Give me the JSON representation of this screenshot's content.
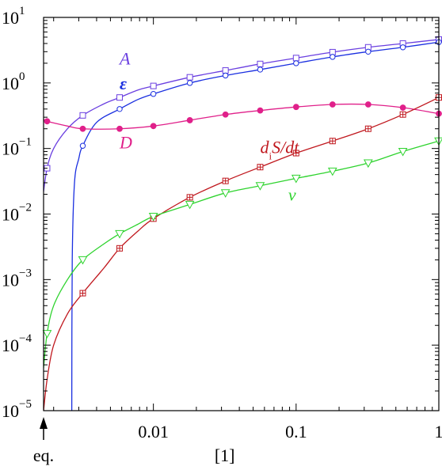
{
  "chart_data": {
    "type": "line",
    "title": "",
    "xlabel": "[1]",
    "ylabel": "",
    "x_scale": "log",
    "y_scale": "log",
    "xlim": [
      0.0017,
      1
    ],
    "ylim": [
      1e-05,
      10
    ],
    "grid": false,
    "x_ticks": [
      {
        "value": 0.01,
        "label": "0.01"
      },
      {
        "value": 0.1,
        "label": "0.1"
      },
      {
        "value": 1,
        "label": "1"
      }
    ],
    "y_ticks": [
      {
        "value": 1e-05,
        "base": "10",
        "exp": "−5"
      },
      {
        "value": 0.0001,
        "base": "10",
        "exp": "−4"
      },
      {
        "value": 0.001,
        "base": "10",
        "exp": "−3"
      },
      {
        "value": 0.01,
        "base": "10",
        "exp": "−2"
      },
      {
        "value": 0.1,
        "base": "10",
        "exp": "−1"
      },
      {
        "value": 1,
        "base": "10",
        "exp": "0"
      },
      {
        "value": 10,
        "base": "10",
        "exp": "1"
      }
    ],
    "eq_marker": {
      "label": "eq.",
      "x": 0.0017
    },
    "series": [
      {
        "name": "A",
        "color": "#6a3fe0",
        "marker": "square",
        "label_at": [
          0.0058,
          1.9
        ],
        "curve": [
          [
            0.0017,
            0.022
          ],
          [
            0.0018,
            0.05
          ],
          [
            0.002,
            0.1
          ],
          [
            0.0025,
            0.2
          ],
          [
            0.0032,
            0.32
          ],
          [
            0.0045,
            0.48
          ],
          [
            0.0058,
            0.6
          ],
          [
            0.0078,
            0.78
          ],
          [
            0.01,
            0.9
          ],
          [
            0.018,
            1.22
          ],
          [
            0.032,
            1.55
          ],
          [
            0.056,
            1.95
          ],
          [
            0.1,
            2.4
          ],
          [
            0.18,
            2.95
          ],
          [
            0.32,
            3.5
          ],
          [
            0.56,
            4.0
          ],
          [
            1,
            4.6
          ]
        ],
        "points": [
          [
            0.0018,
            0.05
          ],
          [
            0.0032,
            0.32
          ],
          [
            0.0058,
            0.6
          ],
          [
            0.01,
            0.9
          ],
          [
            0.018,
            1.22
          ],
          [
            0.032,
            1.55
          ],
          [
            0.056,
            1.95
          ],
          [
            0.1,
            2.4
          ],
          [
            0.18,
            2.95
          ],
          [
            0.32,
            3.5
          ],
          [
            0.56,
            4.0
          ],
          [
            1,
            4.6
          ]
        ]
      },
      {
        "name": "ε",
        "color": "#1a2fe0",
        "marker": "circle",
        "label_at": [
          0.0058,
          0.8
        ],
        "curve": [
          [
            0.00268,
            1e-05
          ],
          [
            0.0027,
            0.002
          ],
          [
            0.0028,
            0.03
          ],
          [
            0.003,
            0.07
          ],
          [
            0.0032,
            0.11
          ],
          [
            0.004,
            0.25
          ],
          [
            0.0058,
            0.4
          ],
          [
            0.0078,
            0.56
          ],
          [
            0.01,
            0.68
          ],
          [
            0.018,
            1.0
          ],
          [
            0.032,
            1.3
          ],
          [
            0.056,
            1.6
          ],
          [
            0.1,
            2.0
          ],
          [
            0.18,
            2.5
          ],
          [
            0.32,
            3.0
          ],
          [
            0.56,
            3.5
          ],
          [
            1,
            4.2
          ]
        ],
        "points": [
          [
            0.0032,
            0.11
          ],
          [
            0.0058,
            0.4
          ],
          [
            0.01,
            0.68
          ],
          [
            0.018,
            1.0
          ],
          [
            0.032,
            1.3
          ],
          [
            0.056,
            1.6
          ],
          [
            0.1,
            2.0
          ],
          [
            0.18,
            2.5
          ],
          [
            0.32,
            3.0
          ],
          [
            0.56,
            3.5
          ],
          [
            1,
            4.2
          ]
        ]
      },
      {
        "name": "D",
        "color": "#e0208a",
        "marker": "dot",
        "label_at": [
          0.0058,
          0.1
        ],
        "curve": [
          [
            0.0017,
            0.28
          ],
          [
            0.0018,
            0.26
          ],
          [
            0.0025,
            0.22
          ],
          [
            0.0032,
            0.2
          ],
          [
            0.0058,
            0.2
          ],
          [
            0.01,
            0.22
          ],
          [
            0.018,
            0.27
          ],
          [
            0.032,
            0.33
          ],
          [
            0.056,
            0.38
          ],
          [
            0.1,
            0.43
          ],
          [
            0.18,
            0.47
          ],
          [
            0.32,
            0.47
          ],
          [
            0.56,
            0.42
          ],
          [
            1,
            0.34
          ]
        ],
        "points": [
          [
            0.0018,
            0.26
          ],
          [
            0.0032,
            0.2
          ],
          [
            0.0058,
            0.2
          ],
          [
            0.01,
            0.22
          ],
          [
            0.018,
            0.27
          ],
          [
            0.032,
            0.33
          ],
          [
            0.056,
            0.38
          ],
          [
            0.1,
            0.43
          ],
          [
            0.18,
            0.47
          ],
          [
            0.32,
            0.47
          ],
          [
            0.56,
            0.42
          ],
          [
            1,
            0.34
          ]
        ]
      },
      {
        "name": "d_iS/dt",
        "label_main": "d",
        "label_sub": "i",
        "label_rest": "S/dt",
        "color": "#c0181e",
        "marker": "square-plus",
        "label_at": [
          0.056,
          0.085
        ],
        "curve": [
          [
            0.0017,
            1e-05
          ],
          [
            0.0018,
            3e-05
          ],
          [
            0.002,
            0.0001
          ],
          [
            0.0025,
            0.0003
          ],
          [
            0.0032,
            0.00062
          ],
          [
            0.0045,
            0.0015
          ],
          [
            0.0058,
            0.003
          ],
          [
            0.0078,
            0.0055
          ],
          [
            0.01,
            0.0085
          ],
          [
            0.018,
            0.018
          ],
          [
            0.032,
            0.032
          ],
          [
            0.056,
            0.052
          ],
          [
            0.1,
            0.085
          ],
          [
            0.18,
            0.13
          ],
          [
            0.32,
            0.2
          ],
          [
            0.56,
            0.33
          ],
          [
            1,
            0.6
          ]
        ],
        "points": [
          [
            0.0032,
            0.00062
          ],
          [
            0.0058,
            0.003
          ],
          [
            0.01,
            0.0085
          ],
          [
            0.018,
            0.018
          ],
          [
            0.032,
            0.032
          ],
          [
            0.056,
            0.052
          ],
          [
            0.1,
            0.085
          ],
          [
            0.18,
            0.13
          ],
          [
            0.32,
            0.2
          ],
          [
            0.56,
            0.33
          ],
          [
            1,
            0.6
          ]
        ]
      },
      {
        "name": "v",
        "color": "#2ed32e",
        "marker": "triangle-down",
        "label_at": [
          0.088,
          0.016
        ],
        "curve": [
          [
            0.0017,
            4.5e-05
          ],
          [
            0.0018,
            0.00015
          ],
          [
            0.002,
            0.0004
          ],
          [
            0.0025,
            0.001
          ],
          [
            0.0032,
            0.002
          ],
          [
            0.0045,
            0.0035
          ],
          [
            0.0058,
            0.005
          ],
          [
            0.0078,
            0.007
          ],
          [
            0.01,
            0.0092
          ],
          [
            0.018,
            0.014
          ],
          [
            0.032,
            0.021
          ],
          [
            0.056,
            0.027
          ],
          [
            0.1,
            0.035
          ],
          [
            0.18,
            0.045
          ],
          [
            0.32,
            0.06
          ],
          [
            0.56,
            0.09
          ],
          [
            1,
            0.13
          ]
        ],
        "points": [
          [
            0.0018,
            0.00015
          ],
          [
            0.0032,
            0.002
          ],
          [
            0.0058,
            0.005
          ],
          [
            0.01,
            0.0092
          ],
          [
            0.018,
            0.014
          ],
          [
            0.032,
            0.021
          ],
          [
            0.056,
            0.027
          ],
          [
            0.1,
            0.035
          ],
          [
            0.18,
            0.045
          ],
          [
            0.32,
            0.06
          ],
          [
            0.56,
            0.09
          ],
          [
            1,
            0.13
          ]
        ]
      }
    ]
  }
}
